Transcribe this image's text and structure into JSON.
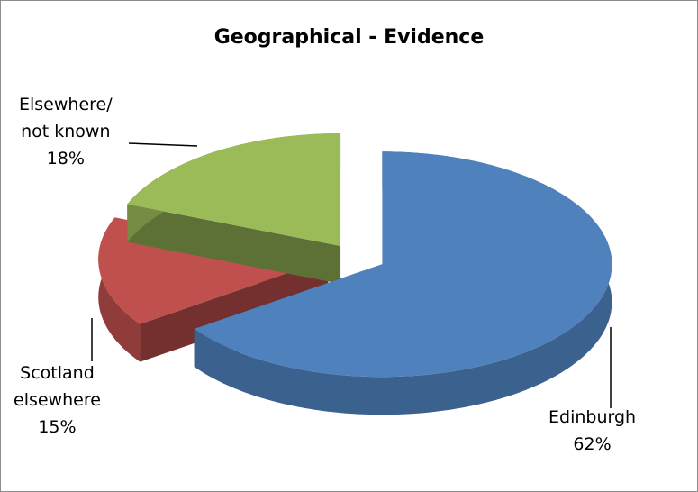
{
  "chart_data": {
    "type": "pie3d",
    "title": "Geographical - Evidence",
    "categories": [
      "Edinburgh",
      "Scotland\nelsewhere",
      "Elsewhere/\nnot known"
    ],
    "values": [
      62,
      15,
      18
    ],
    "value_labels": [
      "62%",
      "15%",
      "18%"
    ],
    "colors": [
      "#4f81bd",
      "#c0504d",
      "#9bbb59"
    ]
  }
}
